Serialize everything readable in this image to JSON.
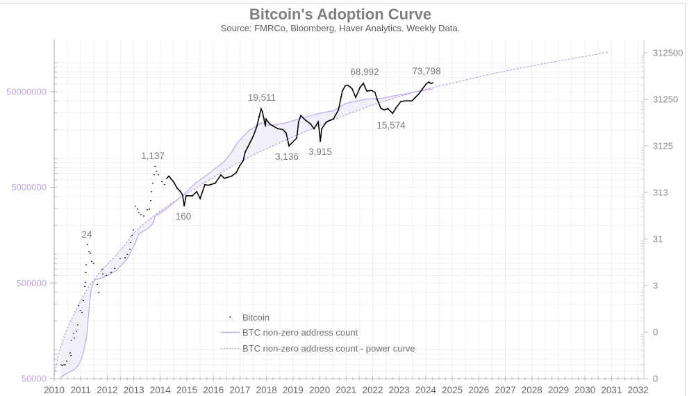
{
  "chart_data": {
    "type": "line",
    "title": "Bitcoin's Adoption Curve",
    "subtitle": "Source: FMRCo, Bloomberg, Haver Analytics. Weekly Data.",
    "xlabel": "",
    "ylabel_left": "",
    "ylabel_right": "",
    "scale": "log",
    "grid": true,
    "xlim": [
      2010,
      2032.22
    ],
    "ylim_left": [
      50000,
      175000000
    ],
    "ylim_right": [
      0.03125,
      600000
    ],
    "x_ticks": [
      {
        "value": 2010,
        "label": "2010"
      },
      {
        "value": 2011,
        "label": "2011"
      },
      {
        "value": 2012,
        "label": "2012"
      },
      {
        "value": 2013,
        "label": "2013"
      },
      {
        "value": 2014,
        "label": "2014"
      },
      {
        "value": 2015,
        "label": "2015"
      },
      {
        "value": 2016,
        "label": "2016"
      },
      {
        "value": 2017,
        "label": "2017"
      },
      {
        "value": 2018,
        "label": "2018"
      },
      {
        "value": 2019,
        "label": "2019"
      },
      {
        "value": 2020,
        "label": "2020"
      },
      {
        "value": 2021,
        "label": "2021"
      },
      {
        "value": 2022,
        "label": "2022"
      },
      {
        "value": 2023,
        "label": "2023"
      },
      {
        "value": 2024,
        "label": "2024"
      },
      {
        "value": 2025,
        "label": "2025"
      },
      {
        "value": 2026,
        "label": "2026"
      },
      {
        "value": 2027,
        "label": "2027"
      },
      {
        "value": 2028,
        "label": "2028"
      },
      {
        "value": 2029,
        "label": "2029"
      },
      {
        "value": 2030,
        "label": "2030"
      },
      {
        "value": 2031,
        "label": "2031"
      },
      {
        "value": 2032,
        "label": "2032"
      }
    ],
    "y_left_ticks": [
      {
        "value": 50000,
        "label": "50000"
      },
      {
        "value": 500000,
        "label": "500000"
      },
      {
        "value": 5000000,
        "label": "5000000"
      },
      {
        "value": 50000000,
        "label": "50000000"
      }
    ],
    "y_right_ticks": [
      {
        "value": 0.03125,
        "label": "0"
      },
      {
        "value": 0.3125,
        "label": "0"
      },
      {
        "value": 3.125,
        "label": "3"
      },
      {
        "value": 31.25,
        "label": "31"
      },
      {
        "value": 312.5,
        "label": "313"
      },
      {
        "value": 3125,
        "label": "3125"
      },
      {
        "value": 31250,
        "label": "31250"
      },
      {
        "value": 312500,
        "label": "312500"
      }
    ],
    "legend": {
      "position": "lower-center"
    },
    "series": [
      {
        "name": "Bitcoin",
        "axis": "right",
        "marker": "dot",
        "color": "#000000",
        "points": [
          [
            2010.26,
            0.062
          ],
          [
            2010.31,
            0.06
          ],
          [
            2010.37,
            0.062
          ],
          [
            2010.42,
            0.062
          ],
          [
            2010.47,
            0.074
          ],
          [
            2010.6,
            0.112
          ],
          [
            2010.63,
            0.098
          ],
          [
            2010.65,
            0.209
          ],
          [
            2010.73,
            0.295
          ],
          [
            2010.76,
            0.232
          ],
          [
            2010.84,
            0.327
          ],
          [
            2010.89,
            0.446
          ],
          [
            2010.92,
            1.17
          ],
          [
            2010.99,
            0.92
          ],
          [
            2011.05,
            0.83
          ],
          [
            2011.1,
            1.49
          ],
          [
            2011.15,
            2.98
          ],
          [
            2011.18,
            3.66
          ],
          [
            2011.19,
            5.94
          ],
          [
            2011.2,
            8.69
          ],
          [
            2011.26,
            24
          ],
          [
            2011.31,
            16.7
          ],
          [
            2011.36,
            15.6
          ],
          [
            2011.41,
            10.3
          ],
          [
            2011.49,
            9.31
          ],
          [
            2011.62,
            3.3
          ],
          [
            2011.68,
            2.18
          ],
          [
            2011.81,
            7.06
          ],
          [
            2011.83,
            5.55
          ],
          [
            2011.96,
            5.18
          ],
          [
            2012.15,
            5.94
          ],
          [
            2012.28,
            7.31
          ],
          [
            2012.49,
            11.9
          ],
          [
            2012.67,
            12.3
          ],
          [
            2012.75,
            14.6
          ],
          [
            2012.85,
            18.6
          ],
          [
            2012.88,
            26.2
          ],
          [
            2012.93,
            37.0
          ],
          [
            2012.98,
            48.8
          ],
          [
            2013.06,
            158
          ],
          [
            2013.14,
            137
          ],
          [
            2013.19,
            116
          ],
          [
            2013.27,
            104
          ],
          [
            2013.38,
            97.3
          ],
          [
            2013.51,
            133
          ],
          [
            2013.59,
            137
          ],
          [
            2013.64,
            208
          ],
          [
            2013.66,
            326
          ],
          [
            2013.72,
            493
          ],
          [
            2013.77,
            746
          ],
          [
            2013.8,
            1137
          ],
          [
            2013.85,
            887
          ],
          [
            2013.93,
            746
          ],
          [
            2014.06,
            528
          ],
          [
            2014.16,
            460
          ],
          [
            2014.24,
            628
          ],
          [
            2014.32,
            697
          ],
          [
            2014.5,
            528
          ],
          [
            2014.63,
            387
          ],
          [
            2014.76,
            326
          ],
          [
            2014.84,
            274
          ],
          [
            2014.9,
            160
          ],
          [
            2014.97,
            265
          ],
          [
            2015.21,
            265
          ],
          [
            2015.37,
            326
          ],
          [
            2015.5,
            231
          ],
          [
            2015.68,
            460
          ],
          [
            2015.81,
            445
          ],
          [
            2016.07,
            493
          ],
          [
            2016.28,
            746
          ],
          [
            2016.41,
            628
          ],
          [
            2016.68,
            697
          ],
          [
            2016.86,
            828
          ],
          [
            2016.99,
            1169
          ],
          [
            2017.12,
            1489
          ],
          [
            2017.2,
            2333
          ],
          [
            2017.3,
            2972
          ],
          [
            2017.43,
            4188
          ],
          [
            2017.51,
            5152
          ],
          [
            2017.64,
            8356
          ],
          [
            2017.72,
            13090
          ],
          [
            2017.8,
            19511
          ],
          [
            2017.85,
            16670
          ],
          [
            2017.96,
            8356
          ],
          [
            2017.98,
            11800
          ],
          [
            2018.12,
            9268
          ],
          [
            2018.25,
            8356
          ],
          [
            2018.43,
            7278
          ],
          [
            2018.61,
            7031
          ],
          [
            2018.74,
            5916
          ],
          [
            2018.85,
            3136
          ],
          [
            2018.95,
            3600
          ],
          [
            2019.14,
            4645
          ],
          [
            2019.21,
            10280
          ],
          [
            2019.29,
            14030
          ],
          [
            2019.48,
            11015
          ],
          [
            2019.66,
            9268
          ],
          [
            2019.79,
            7278
          ],
          [
            2019.95,
            10280
          ],
          [
            2020.03,
            3915
          ],
          [
            2020.08,
            7278
          ],
          [
            2020.26,
            10280
          ],
          [
            2020.52,
            11800
          ],
          [
            2020.71,
            18490
          ],
          [
            2020.86,
            46990
          ],
          [
            2020.97,
            61940
          ],
          [
            2021.05,
            63000
          ],
          [
            2021.15,
            58000
          ],
          [
            2021.23,
            52120
          ],
          [
            2021.36,
            34440
          ],
          [
            2021.52,
            55850
          ],
          [
            2021.65,
            68992
          ],
          [
            2021.78,
            46990
          ],
          [
            2021.96,
            48640
          ],
          [
            2022.09,
            43850
          ],
          [
            2022.17,
            31050
          ],
          [
            2022.3,
            20510
          ],
          [
            2022.43,
            18490
          ],
          [
            2022.57,
            19820
          ],
          [
            2022.75,
            15574
          ],
          [
            2022.88,
            20510
          ],
          [
            2023.06,
            28000
          ],
          [
            2023.22,
            28970
          ],
          [
            2023.48,
            28970
          ],
          [
            2023.61,
            34440
          ],
          [
            2023.74,
            40930
          ],
          [
            2023.87,
            52120
          ],
          [
            2024.01,
            66000
          ],
          [
            2024.11,
            73798
          ],
          [
            2024.19,
            68710
          ],
          [
            2024.27,
            71000
          ]
        ]
      },
      {
        "name": "BTC non-zero address count",
        "axis": "left",
        "marker": "line",
        "color": "#c6b0ec",
        "points": [
          [
            2010.26,
            51700
          ],
          [
            2010.5,
            57200
          ],
          [
            2010.76,
            62200
          ],
          [
            2010.92,
            69900
          ],
          [
            2011.02,
            79900
          ],
          [
            2011.1,
            94500
          ],
          [
            2011.18,
            119400
          ],
          [
            2011.23,
            143600
          ],
          [
            2011.28,
            207500
          ],
          [
            2011.34,
            315500
          ],
          [
            2011.39,
            419500
          ],
          [
            2011.47,
            496000
          ],
          [
            2011.54,
            539000
          ],
          [
            2011.81,
            567000
          ],
          [
            2012.07,
            616600
          ],
          [
            2012.33,
            670400
          ],
          [
            2012.75,
            891000
          ],
          [
            2013.06,
            1310000
          ],
          [
            2013.19,
            1628000
          ],
          [
            2013.51,
            1830000
          ],
          [
            2013.72,
            2094000
          ],
          [
            2013.8,
            2475000
          ],
          [
            2014.16,
            2877000
          ],
          [
            2014.58,
            3577000
          ],
          [
            2014.95,
            4373000
          ],
          [
            2015.29,
            5437000
          ],
          [
            2015.73,
            6647000
          ],
          [
            2016.07,
            7860000
          ],
          [
            2016.41,
            9292000
          ],
          [
            2016.68,
            11550000
          ],
          [
            2016.86,
            14120000
          ],
          [
            2017.12,
            16980000
          ],
          [
            2017.3,
            19090000
          ],
          [
            2017.57,
            21470000
          ],
          [
            2017.83,
            23740000
          ],
          [
            2018.09,
            22200000
          ],
          [
            2018.35,
            22570000
          ],
          [
            2018.77,
            23740000
          ],
          [
            2019.21,
            25800000
          ],
          [
            2019.66,
            28060000
          ],
          [
            2020.08,
            30010000
          ],
          [
            2020.52,
            31550000
          ],
          [
            2020.97,
            37300000
          ],
          [
            2021.13,
            38580000
          ],
          [
            2021.83,
            41950000
          ],
          [
            2022.36,
            42660000
          ],
          [
            2022.88,
            45600000
          ],
          [
            2023.32,
            47950000
          ],
          [
            2023.74,
            50420000
          ],
          [
            2024.01,
            52140000
          ],
          [
            2024.27,
            53020000
          ]
        ]
      },
      {
        "name": "BTC non-zero address count - power curve",
        "axis": "left",
        "marker": "dashed-line",
        "color": "#b79fdf",
        "points": [
          [
            2010.0,
            54300
          ],
          [
            2010.13,
            81300
          ],
          [
            2010.26,
            109900
          ],
          [
            2010.39,
            141300
          ],
          [
            2010.52,
            175600
          ],
          [
            2010.79,
            249500
          ],
          [
            2011.05,
            349000
          ],
          [
            2011.31,
            463700
          ],
          [
            2011.7,
            637000
          ],
          [
            2012.15,
            861000
          ],
          [
            2012.59,
            1186000
          ],
          [
            2013.01,
            1683000
          ],
          [
            2013.46,
            2163000
          ],
          [
            2013.9,
            2692000
          ],
          [
            2014.42,
            3404000
          ],
          [
            2014.95,
            4227000
          ],
          [
            2015.55,
            5346000
          ],
          [
            2016.07,
            6535000
          ],
          [
            2016.86,
            8831000
          ],
          [
            2017.64,
            11350000
          ],
          [
            2018.43,
            14350000
          ],
          [
            2019.21,
            17860000
          ],
          [
            2020.08,
            22590000
          ],
          [
            2020.97,
            28510000
          ],
          [
            2021.83,
            34910000
          ],
          [
            2022.7,
            41980000
          ],
          [
            2023.59,
            49550000
          ],
          [
            2024.45,
            56750000
          ],
          [
            2025.24,
            63680000
          ],
          [
            2026.47,
            76560000
          ],
          [
            2028.19,
            95280000
          ],
          [
            2029.95,
            116400000
          ],
          [
            2030.86,
            128800000
          ]
        ]
      }
    ],
    "shaded_region": {
      "between_series": [
        1,
        2
      ],
      "color": "#f1eff7"
    },
    "annotations": [
      {
        "text": "24",
        "year": 2011.26,
        "price": 24
      },
      {
        "text": "1,137",
        "year": 2013.8,
        "price": 1137
      },
      {
        "text": "160",
        "year": 2014.9,
        "price": 160
      },
      {
        "text": "19,511",
        "year": 2017.8,
        "price": 19511
      },
      {
        "text": "3,136",
        "year": 2018.85,
        "price": 3136
      },
      {
        "text": "3,915",
        "year": 2020.03,
        "price": 3915
      },
      {
        "text": "68,992",
        "year": 2021.65,
        "price": 68992
      },
      {
        "text": "15,574",
        "year": 2022.75,
        "price": 15574
      },
      {
        "text": "73,798",
        "year": 2024.11,
        "price": 73798
      }
    ]
  },
  "colors": {
    "left_axis_labels": "#c3a3ee",
    "right_axis_labels": "#8a8a8a",
    "title": "#7f7f7f",
    "grid": "#efefef"
  }
}
